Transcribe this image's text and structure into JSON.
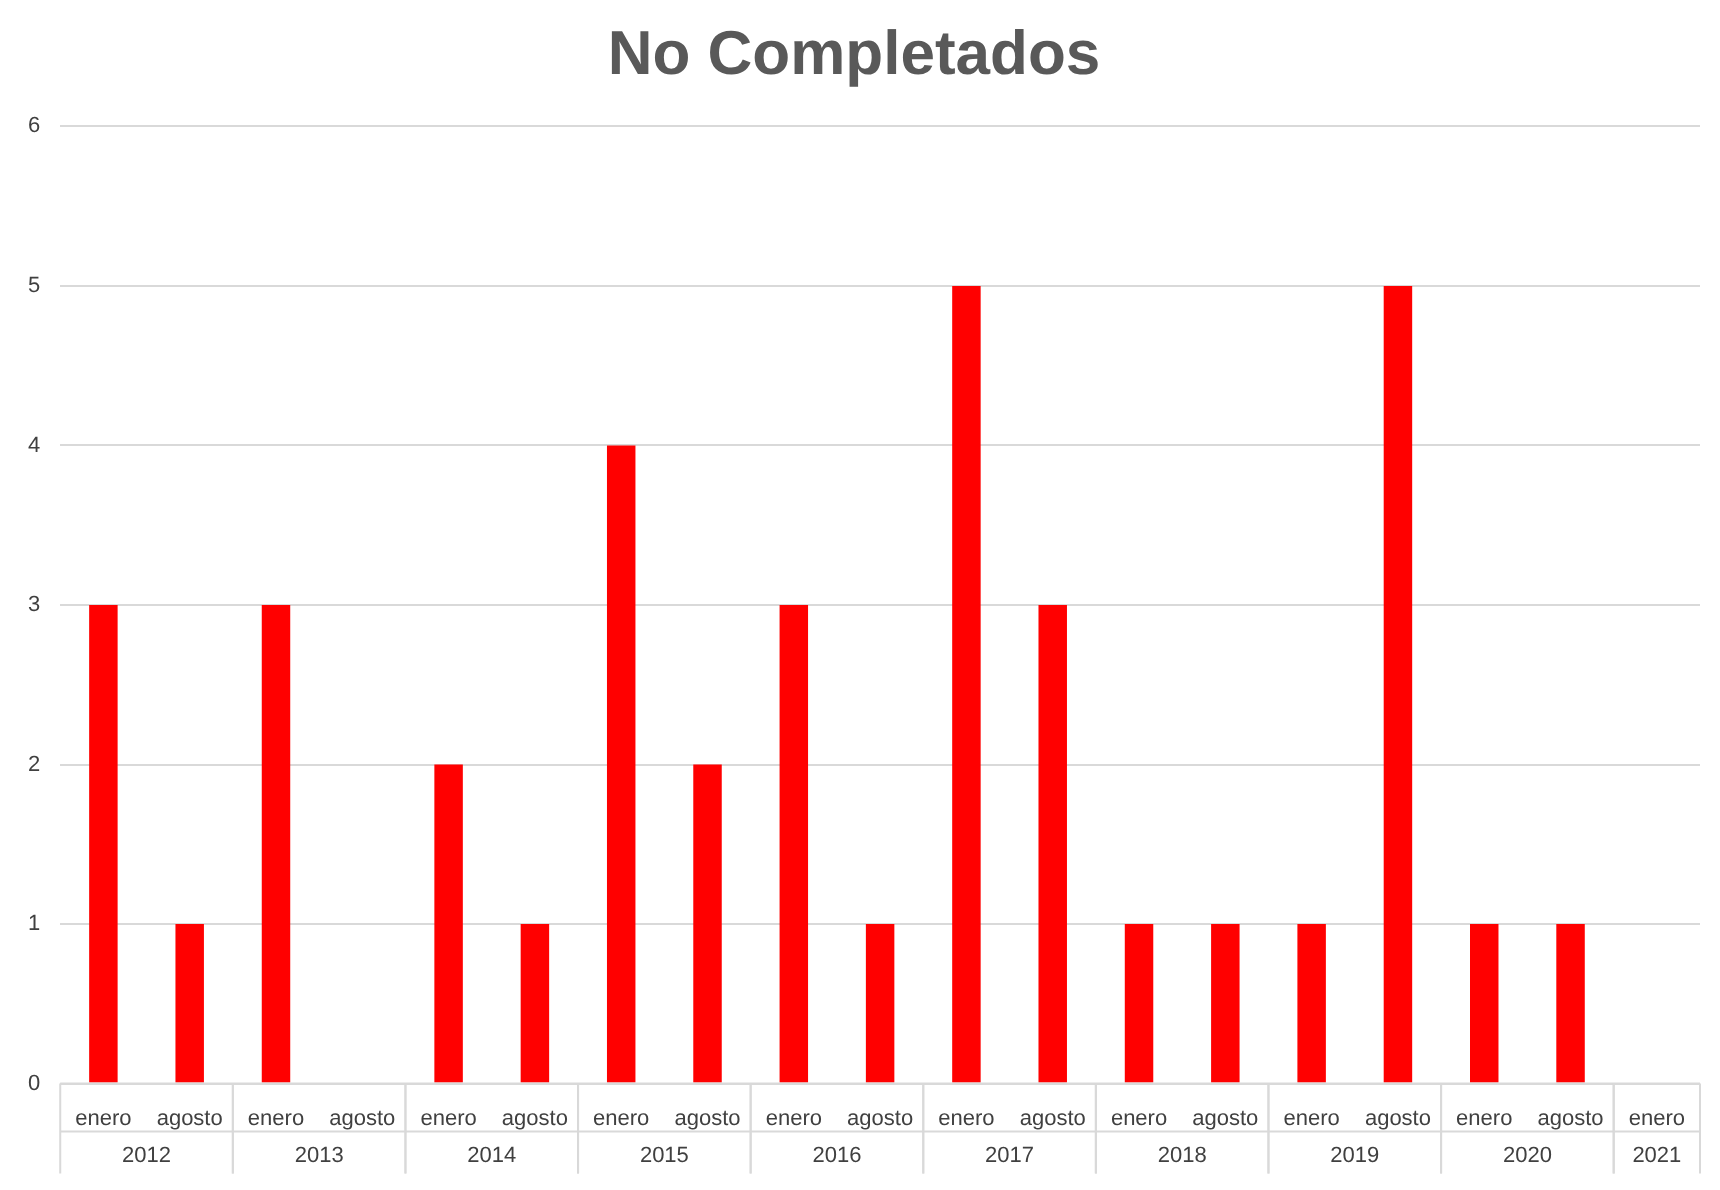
{
  "chart_data": {
    "type": "bar",
    "title": "No Completados",
    "categories": [
      "enero",
      "agosto",
      "enero",
      "agosto",
      "enero",
      "agosto",
      "enero",
      "agosto",
      "enero",
      "agosto",
      "enero",
      "agosto",
      "enero",
      "agosto",
      "enero",
      "agosto",
      "enero",
      "agosto",
      "enero"
    ],
    "values": [
      3,
      1,
      3,
      0,
      2,
      1,
      4,
      2,
      3,
      1,
      5,
      3,
      1,
      1,
      1,
      5,
      1,
      1,
      0
    ],
    "color": "#ff0000",
    "ylim": [
      0,
      6
    ],
    "yticks": [
      0,
      1,
      2,
      3,
      4,
      5,
      6
    ],
    "grid": "y",
    "legend": false,
    "annotations": [
      "2012",
      "2013",
      "2014",
      "2015",
      "2016",
      "2017",
      "2018",
      "2019",
      "2020",
      "2021"
    ]
  }
}
